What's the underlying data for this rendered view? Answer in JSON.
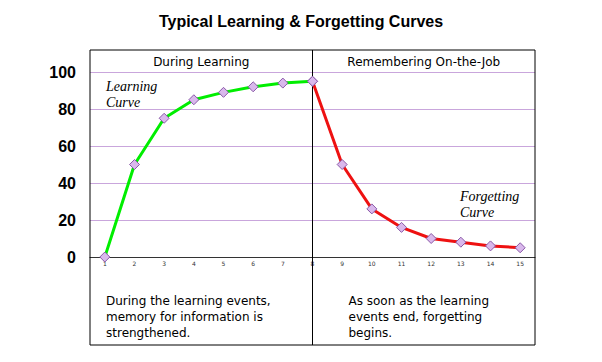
{
  "chart_data": {
    "type": "line",
    "title": "Typical Learning & Forgetting Curves",
    "categories": [
      "1",
      "2",
      "3",
      "4",
      "5",
      "6",
      "7",
      "8",
      "9",
      "10",
      "11",
      "12",
      "13",
      "14",
      "15"
    ],
    "series": [
      {
        "name": "Learning Curve",
        "color": "#00ee00",
        "marker": "diamond",
        "values": [
          0,
          50,
          75,
          85,
          89,
          92,
          94,
          95,
          null,
          null,
          null,
          null,
          null,
          null,
          null
        ]
      },
      {
        "name": "Forgetting Curve",
        "color": "#ee1111",
        "marker": "diamond",
        "values": [
          null,
          null,
          null,
          null,
          null,
          null,
          null,
          95,
          50,
          26,
          16,
          10,
          8,
          6,
          5
        ]
      }
    ],
    "ylim": [
      0,
      100
    ],
    "yticks": [
      0,
      20,
      40,
      60,
      80,
      100
    ],
    "grid": true,
    "annotations": [
      "During Learning",
      "Remembering On-the-Job",
      "During the learning events, memory for information is strengthened.",
      "As soon as the learning events end, forgetting begins."
    ]
  }
}
